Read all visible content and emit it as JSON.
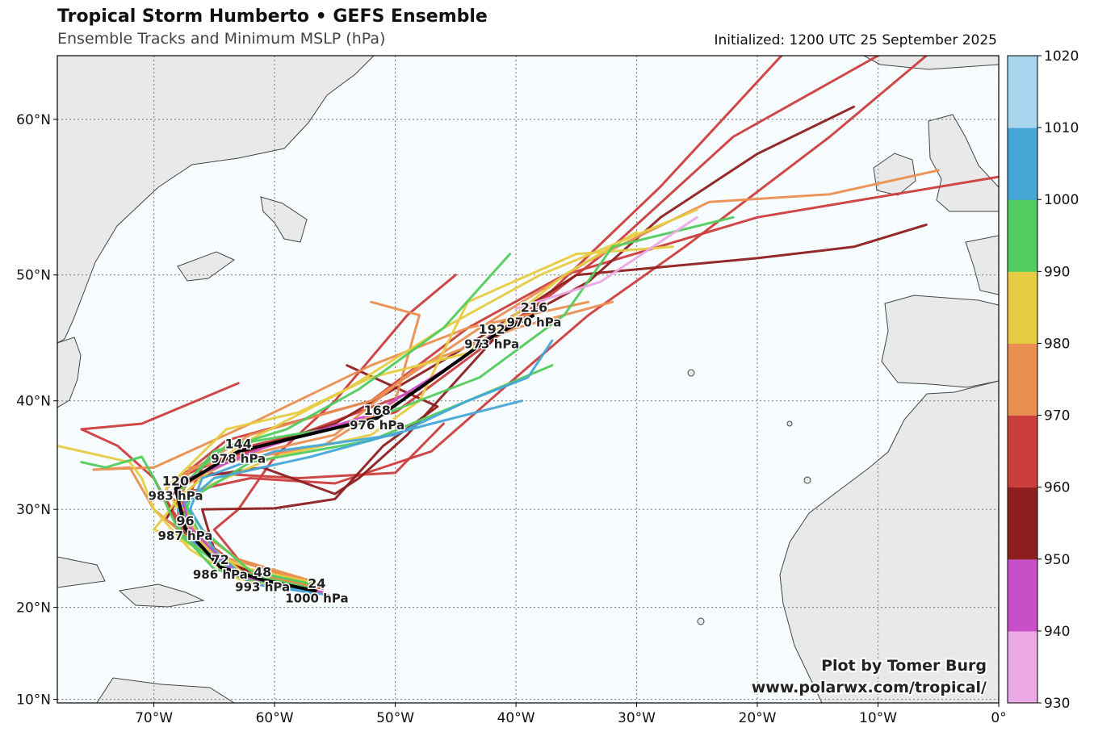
{
  "header": {
    "title": "Tropical Storm Humberto • GEFS Ensemble",
    "subtitle": "Ensemble Tracks and Minimum MSLP (hPa)",
    "initialized": "Initialized: 1200 UTC 25 September 2025"
  },
  "credits": {
    "line1": "Plot by Tomer Burg",
    "line2": "www.polarwx.com/tropical/"
  },
  "map": {
    "extent": {
      "lon_min": -78,
      "lon_max": 0,
      "lat_min": 9.6,
      "lat_max": 63.4
    },
    "ocean_color": "#f7fdff",
    "land_color": "#e9e9e9",
    "lon_ticks": [
      {
        "lon": -70,
        "label": "70°W"
      },
      {
        "lon": -60,
        "label": "60°W"
      },
      {
        "lon": -50,
        "label": "50°W"
      },
      {
        "lon": -40,
        "label": "40°W"
      },
      {
        "lon": -30,
        "label": "30°W"
      },
      {
        "lon": -20,
        "label": "20°W"
      },
      {
        "lon": -10,
        "label": "10°W"
      },
      {
        "lon": 0,
        "label": "0°"
      }
    ],
    "lat_ticks": [
      {
        "lat": 10,
        "label": "10°N"
      },
      {
        "lat": 20,
        "label": "20°N"
      },
      {
        "lat": 30,
        "label": "30°N"
      },
      {
        "lat": 40,
        "label": "40°N"
      },
      {
        "lat": 50,
        "label": "50°N"
      },
      {
        "lat": 60,
        "label": "60°N"
      }
    ]
  },
  "colorbar": {
    "levels": [
      930,
      940,
      950,
      960,
      970,
      980,
      990,
      1000,
      1010,
      1020
    ],
    "labels": [
      "930",
      "940",
      "950",
      "960",
      "970",
      "980",
      "990",
      "1000",
      "1010",
      "1020"
    ],
    "colors": [
      "#eba9e6",
      "#c94fc9",
      "#8e1f1f",
      "#cc3e3e",
      "#ea8f52",
      "#e6cc42",
      "#52cc5e",
      "#46a6d6",
      "#a8d5ed"
    ]
  },
  "mean_track": [
    {
      "lon": -56.5,
      "lat": 21.7,
      "hour": "24",
      "mslp": "1000 hPa"
    },
    {
      "lon": -61.0,
      "lat": 22.9,
      "hour": "48",
      "mslp": "993 hPa"
    },
    {
      "lon": -64.5,
      "lat": 24.2,
      "hour": "72",
      "mslp": "986 hPa"
    },
    {
      "lon": -67.4,
      "lat": 28.1,
      "hour": "96",
      "mslp": "987 hPa"
    },
    {
      "lon": -68.2,
      "lat": 32.0,
      "hour": "120",
      "mslp": "983 hPa"
    },
    {
      "lon": -63.0,
      "lat": 35.5,
      "hour": "144",
      "mslp": "978 hPa"
    },
    {
      "lon": -51.5,
      "lat": 38.5,
      "hour": "168",
      "mslp": "976 hPa"
    },
    {
      "lon": -42.0,
      "lat": 45.3,
      "hour": "192",
      "mslp": "973 hPa"
    },
    {
      "lon": -38.5,
      "lat": 47.0,
      "hour": "216",
      "mslp": "970 hPa"
    }
  ],
  "tracks": [
    {
      "color": "#cc3e3e",
      "points": [
        [
          -57,
          22
        ],
        [
          -63,
          24
        ],
        [
          -67,
          28
        ],
        [
          -68,
          33
        ],
        [
          -62,
          36
        ],
        [
          -50,
          39
        ],
        [
          -42,
          45
        ],
        [
          -32,
          52
        ],
        [
          -22,
          59
        ],
        [
          -10,
          63.4
        ]
      ]
    },
    {
      "color": "#cc3e3e",
      "points": [
        [
          -57.5,
          21.8
        ],
        [
          -64,
          24.5
        ],
        [
          -68,
          29
        ],
        [
          -66,
          34
        ],
        [
          -58,
          37
        ],
        [
          -48,
          41
        ],
        [
          -38,
          48
        ],
        [
          -28,
          56
        ],
        [
          -18,
          63.4
        ]
      ]
    },
    {
      "color": "#cc3e3e",
      "points": [
        [
          -56,
          22
        ],
        [
          -62,
          23.5
        ],
        [
          -66,
          27
        ],
        [
          -69,
          32
        ],
        [
          -64,
          36.5
        ],
        [
          -52,
          40
        ],
        [
          -44,
          46
        ],
        [
          -36,
          50
        ],
        [
          -20,
          54
        ],
        [
          0,
          56.6
        ]
      ]
    },
    {
      "color": "#cc3e3e",
      "points": [
        [
          -57,
          22.5
        ],
        [
          -64,
          24
        ],
        [
          -68,
          28.5
        ],
        [
          -70,
          33
        ],
        [
          -73,
          36
        ],
        [
          -76,
          37.5
        ],
        [
          -71,
          38
        ],
        [
          -63,
          41.5
        ]
      ]
    },
    {
      "color": "#cc3e3e",
      "points": [
        [
          -56,
          22
        ],
        [
          -63,
          25
        ],
        [
          -65,
          28
        ],
        [
          -63,
          30
        ],
        [
          -60,
          35
        ],
        [
          -55,
          40
        ],
        [
          -49,
          47
        ],
        [
          -45,
          50
        ]
      ]
    },
    {
      "color": "#cc3e3e",
      "points": [
        [
          -58,
          22.5
        ],
        [
          -64,
          24
        ],
        [
          -67,
          27
        ],
        [
          -69,
          31
        ],
        [
          -66,
          33.5
        ],
        [
          -58,
          33
        ],
        [
          -50,
          33.5
        ],
        [
          -46,
          38
        ]
      ]
    },
    {
      "color": "#cc3e3e",
      "points": [
        [
          -57,
          22
        ],
        [
          -64,
          24.5
        ],
        [
          -68,
          28
        ],
        [
          -68,
          31.5
        ],
        [
          -62,
          33
        ],
        [
          -55,
          32.5
        ],
        [
          -47,
          35.5
        ],
        [
          -40,
          42
        ],
        [
          -34,
          47
        ],
        [
          -26,
          52
        ],
        [
          -14,
          59
        ],
        [
          -6,
          63.4
        ]
      ]
    },
    {
      "color": "#8e1f1f",
      "points": [
        [
          -57,
          22
        ],
        [
          -63,
          24
        ],
        [
          -67,
          28
        ],
        [
          -68,
          32
        ],
        [
          -64,
          35
        ],
        [
          -55,
          38
        ],
        [
          -45,
          44
        ],
        [
          -35,
          50
        ],
        [
          -20,
          51.2
        ],
        [
          -12,
          52
        ],
        [
          -6,
          53.5
        ]
      ]
    },
    {
      "color": "#8e1f1f",
      "points": [
        [
          -58,
          22.3
        ],
        [
          -64,
          24.6
        ],
        [
          -69,
          29
        ],
        [
          -67,
          33
        ],
        [
          -61,
          34
        ],
        [
          -55,
          31.5
        ],
        [
          -53,
          33
        ],
        [
          -49,
          37
        ],
        [
          -41,
          46
        ],
        [
          -34,
          49.5
        ],
        [
          -28,
          54
        ],
        [
          -20,
          58
        ],
        [
          -12,
          60.7
        ]
      ]
    },
    {
      "color": "#8e1f1f",
      "points": [
        [
          -57,
          21.5
        ],
        [
          -62,
          23
        ],
        [
          -65,
          26
        ],
        [
          -66,
          30
        ],
        [
          -60,
          30.1
        ],
        [
          -55,
          31
        ],
        [
          -51,
          36
        ],
        [
          -46.5,
          39.5
        ],
        [
          -54,
          43
        ]
      ]
    },
    {
      "color": "#ea8f52",
      "points": [
        [
          -57,
          22.8
        ],
        [
          -63,
          25
        ],
        [
          -67,
          28.5
        ],
        [
          -68,
          33
        ],
        [
          -62,
          37
        ],
        [
          -52,
          40
        ],
        [
          -43,
          46
        ],
        [
          -34,
          51
        ],
        [
          -24,
          55
        ],
        [
          -14,
          55.5
        ],
        [
          -5,
          57
        ]
      ]
    },
    {
      "color": "#ea8f52",
      "points": [
        [
          -56.5,
          22
        ],
        [
          -63,
          23.7
        ],
        [
          -67,
          27
        ],
        [
          -70,
          30
        ],
        [
          -72,
          34
        ],
        [
          -75,
          33.8
        ],
        [
          -70,
          34
        ],
        [
          -62,
          38
        ],
        [
          -52,
          43
        ],
        [
          -44,
          46
        ],
        [
          -34,
          48
        ]
      ]
    },
    {
      "color": "#ea8f52",
      "points": [
        [
          -57,
          22.4
        ],
        [
          -64,
          24
        ],
        [
          -68,
          28
        ],
        [
          -68,
          32
        ],
        [
          -63,
          35
        ],
        [
          -55,
          37
        ],
        [
          -48,
          43
        ],
        [
          -40,
          46
        ],
        [
          -32,
          48
        ]
      ]
    },
    {
      "color": "#ea8f52",
      "points": [
        [
          -58,
          23
        ],
        [
          -65,
          25.5
        ],
        [
          -68,
          30
        ],
        [
          -67,
          34
        ],
        [
          -56,
          36
        ],
        [
          -50,
          40
        ],
        [
          -48,
          47
        ],
        [
          -52,
          48
        ]
      ]
    },
    {
      "color": "#e6cc42",
      "points": [
        [
          -57,
          21.8
        ],
        [
          -63,
          23
        ],
        [
          -67,
          26
        ],
        [
          -70,
          30
        ],
        [
          -71,
          33
        ],
        [
          -72,
          34.5
        ],
        [
          -78,
          36
        ]
      ]
    },
    {
      "color": "#e6cc42",
      "points": [
        [
          -56,
          21.5
        ],
        [
          -62,
          23
        ],
        [
          -66,
          27
        ],
        [
          -68,
          31
        ],
        [
          -63,
          36
        ],
        [
          -54,
          41
        ],
        [
          -46,
          46
        ],
        [
          -38,
          50
        ],
        [
          -25,
          54.5
        ]
      ]
    },
    {
      "color": "#e6cc42",
      "points": [
        [
          -57,
          21.7
        ],
        [
          -64,
          24
        ],
        [
          -67,
          28
        ],
        [
          -69,
          32
        ],
        [
          -64,
          37.5
        ],
        [
          -58,
          39
        ],
        [
          -52,
          42
        ],
        [
          -44,
          44
        ],
        [
          -36,
          50
        ],
        [
          -30,
          53
        ]
      ]
    },
    {
      "color": "#e6cc42",
      "points": [
        [
          -56.5,
          22.5
        ],
        [
          -62,
          24
        ],
        [
          -66,
          26
        ],
        [
          -70,
          28
        ],
        [
          -68,
          31
        ],
        [
          -60,
          35
        ],
        [
          -52,
          37
        ],
        [
          -48,
          40
        ],
        [
          -44,
          48
        ],
        [
          -35,
          51.5
        ],
        [
          -27,
          52
        ]
      ]
    },
    {
      "color": "#52cc5e",
      "points": [
        [
          -57,
          22
        ],
        [
          -64,
          24
        ],
        [
          -68,
          27.5
        ],
        [
          -67,
          31
        ],
        [
          -62,
          34.5
        ],
        [
          -52,
          36.5
        ],
        [
          -44,
          40
        ],
        [
          -37,
          43
        ]
      ]
    },
    {
      "color": "#52cc5e",
      "points": [
        [
          -57,
          21.6
        ],
        [
          -63,
          23.2
        ],
        [
          -66,
          27
        ],
        [
          -68,
          32
        ],
        [
          -64,
          36
        ],
        [
          -53,
          38
        ],
        [
          -43,
          42
        ],
        [
          -36,
          47
        ],
        [
          -32,
          52
        ],
        [
          -22,
          54
        ]
      ]
    },
    {
      "color": "#52cc5e",
      "points": [
        [
          -58,
          22
        ],
        [
          -65,
          24
        ],
        [
          -68,
          28
        ],
        [
          -70,
          33
        ],
        [
          -71,
          35
        ],
        [
          -74,
          34
        ],
        [
          -76,
          34.5
        ]
      ]
    },
    {
      "color": "#52cc5e",
      "points": [
        [
          -56,
          22.2
        ],
        [
          -62,
          23.8
        ],
        [
          -66,
          28
        ],
        [
          -68,
          31.5
        ],
        [
          -65,
          35.5
        ],
        [
          -59,
          37.5
        ],
        [
          -53,
          41
        ],
        [
          -46,
          46
        ],
        [
          -40.5,
          51.5
        ]
      ]
    },
    {
      "color": "#46a6d6",
      "points": [
        [
          -55.5,
          21.3
        ],
        [
          -62,
          22.5
        ],
        [
          -65,
          26
        ],
        [
          -67,
          30
        ],
        [
          -66,
          33
        ],
        [
          -60,
          35.5
        ],
        [
          -50,
          37
        ],
        [
          -44,
          40
        ],
        [
          -39,
          42
        ],
        [
          -37,
          45
        ]
      ]
    },
    {
      "color": "#46a6d6",
      "points": [
        [
          -57,
          21.5
        ],
        [
          -63,
          23.5
        ],
        [
          -67,
          27
        ],
        [
          -68,
          30
        ],
        [
          -65,
          33
        ],
        [
          -57,
          35
        ],
        [
          -47,
          38
        ],
        [
          -39.5,
          40
        ]
      ]
    },
    {
      "color": "#c94fc9",
      "points": [
        [
          -56,
          21.6
        ],
        [
          -63,
          23.3
        ],
        [
          -67,
          28.2
        ],
        [
          -68,
          32.5
        ],
        [
          -61,
          35.8
        ],
        [
          -52,
          38.8
        ],
        [
          -44.5,
          43.5
        ],
        [
          -42,
          45.5
        ]
      ]
    },
    {
      "color": "#eba9e6",
      "points": [
        [
          -40,
          47.5
        ],
        [
          -33,
          49.5
        ],
        [
          -25,
          54
        ]
      ]
    }
  ]
}
